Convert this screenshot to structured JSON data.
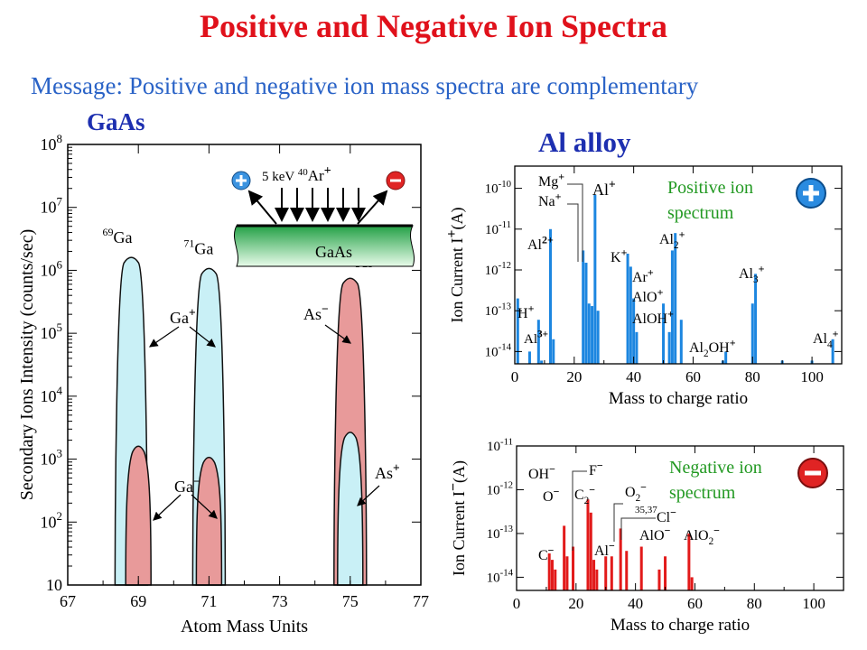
{
  "slide": {
    "title": "Positive and Negative Ion Spectra",
    "message": "Message: Positive and negative ion mass spectra are complementary"
  },
  "colors": {
    "title": "#e0111b",
    "message": "#2a63c7",
    "panel_title": "#1d2fb0",
    "positive_fill": "#c9f0f6",
    "negative_fill": "#e89a9a",
    "positive_bars": "#1c86e0",
    "negative_bars": "#e21a1a",
    "annotation_green": "#229922",
    "substrate": "#22a045"
  },
  "chart_data": [
    {
      "id": "gaas",
      "type": "area",
      "title": "GaAs",
      "xlabel": "Atom Mass Units",
      "ylabel": "Secondary Ions Intensity (counts/sec)",
      "y_scale": "log",
      "xlim": [
        67,
        77
      ],
      "ylim": [
        10,
        100000000
      ],
      "x_ticks": [
        "67",
        "69",
        "71",
        "73",
        "75",
        "77"
      ],
      "y_ticks": [
        "10",
        "10^2",
        "10^3",
        "10^4",
        "10^5",
        "10^6",
        "10^7",
        "10^8"
      ],
      "series": [
        {
          "name": "Ga+",
          "polarity": "positive",
          "peaks": [
            {
              "center": 68.8,
              "max": 1500000
            },
            {
              "center": 71.0,
              "max": 1000000
            }
          ]
        },
        {
          "name": "Ga-",
          "polarity": "negative",
          "peaks": [
            {
              "center": 69.0,
              "max": 1500
            },
            {
              "center": 71.0,
              "max": 1000
            }
          ]
        },
        {
          "name": "As-",
          "polarity": "negative",
          "peaks": [
            {
              "center": 75.0,
              "max": 700000
            }
          ]
        },
        {
          "name": "As+",
          "polarity": "positive",
          "peaks": [
            {
              "center": 75.0,
              "max": 2500
            }
          ]
        }
      ],
      "peak_labels": [
        {
          "mass": "69",
          "text": "Ga"
        },
        {
          "mass": "71",
          "text": "Ga"
        },
        {
          "mass": "75",
          "text": "As"
        }
      ],
      "inset": {
        "beam": "5 keV",
        "beam_mass": "40",
        "beam_ion": "Ar",
        "beam_charge": "+",
        "target": "GaAs"
      }
    },
    {
      "id": "al-positive",
      "type": "bar",
      "title": "Al alloy",
      "xlabel": "Mass to charge ratio",
      "ylabel": "Ion Current",
      "ylabel_symbol": "I",
      "ylabel_charge": "+",
      "ylabel_unit": "(A)",
      "y_scale": "log",
      "xlim": [
        0,
        110
      ],
      "ylim": [
        5e-15,
        3.5e-10
      ],
      "x_ticks": [
        "0",
        "20",
        "40",
        "60",
        "80",
        "100"
      ],
      "y_ticks": [
        "10^-14",
        "10^-13",
        "10^-12",
        "10^-11",
        "10^-10"
      ],
      "annotation": "Positive ion spectrum",
      "x": [
        1,
        5,
        8,
        9,
        12,
        13,
        23,
        24,
        25,
        26,
        27,
        28,
        38,
        39,
        40,
        41,
        50,
        52,
        53,
        54,
        56,
        70,
        71,
        80,
        81,
        90,
        100,
        107
      ],
      "values": [
        2e-13,
        1e-14,
        6e-14,
        6e-15,
        1e-11,
        2e-14,
        3e-12,
        1.5e-12,
        1.5e-13,
        1.3e-13,
        7e-11,
        1e-13,
        2.5e-12,
        1.2e-12,
        2e-13,
        3e-14,
        1.5e-13,
        3e-14,
        3e-12,
        8e-12,
        6e-14,
        6e-15,
        1e-14,
        1.5e-13,
        8e-13,
        6e-15,
        6e-15,
        2e-14
      ],
      "labels": [
        {
          "text": "Mg",
          "sup": "+"
        },
        {
          "text": "Na",
          "sup": "+"
        },
        {
          "text": "Al",
          "sup": "+"
        },
        {
          "text": "Al",
          "sup": "2+"
        },
        {
          "text": "K",
          "sup": "+"
        },
        {
          "text": "Al",
          "sub": "2",
          "sup": "+"
        },
        {
          "text": "Ar",
          "sup": "+"
        },
        {
          "text": "AlO",
          "sup": "+"
        },
        {
          "text": "AlOH",
          "sup": "+"
        },
        {
          "text": "Al",
          "sub": "3",
          "sup": "+"
        },
        {
          "text": "H",
          "sup": "+"
        },
        {
          "text": "Al",
          "sup": "3+"
        },
        {
          "text": "Al",
          "sub": "2",
          "text2": "OH",
          "sup": "+"
        },
        {
          "text": "Al",
          "sub": "4",
          "sup": "+"
        }
      ]
    },
    {
      "id": "al-negative",
      "type": "bar",
      "xlabel": "Mass to charge ratio",
      "ylabel": "Ion Current",
      "ylabel_symbol": "I",
      "ylabel_charge": "−",
      "ylabel_unit": "(A)",
      "y_scale": "log",
      "xlim": [
        0,
        110
      ],
      "ylim": [
        5e-15,
        1e-11
      ],
      "x_ticks": [
        "0",
        "20",
        "40",
        "60",
        "80",
        "100"
      ],
      "y_ticks": [
        "10^-14",
        "10^-13",
        "10^-12",
        "10^-11"
      ],
      "annotation": "Negative ion spectrum",
      "x": [
        11,
        12,
        13,
        16,
        17,
        19,
        24,
        25,
        26,
        27,
        30,
        32,
        35,
        37,
        42,
        48,
        50,
        58,
        59
      ],
      "values": [
        3.5e-14,
        2.5e-14,
        1.5e-14,
        1.5e-13,
        3e-14,
        5e-14,
        6e-13,
        3e-13,
        2.5e-14,
        1.5e-14,
        3e-14,
        3e-14,
        1.3e-13,
        4e-14,
        5e-14,
        1.5e-14,
        3e-14,
        1e-13,
        1e-14
      ],
      "labels": [
        {
          "text": "OH",
          "sup": "−"
        },
        {
          "text": "O",
          "sup": "−"
        },
        {
          "text": "F",
          "sup": "−"
        },
        {
          "text": "C",
          "sub": "2",
          "sup": "−"
        },
        {
          "text": "O",
          "sub": "2",
          "sup": "−"
        },
        {
          "text": "35,37"
        },
        {
          "text": "Cl",
          "sup": "−"
        },
        {
          "text": "C",
          "sup": "−"
        },
        {
          "text": "Al",
          "sup": "−"
        },
        {
          "text": "AlO",
          "sup": "−"
        },
        {
          "text": "AlO",
          "sub": "2",
          "sup": "−"
        }
      ]
    }
  ]
}
